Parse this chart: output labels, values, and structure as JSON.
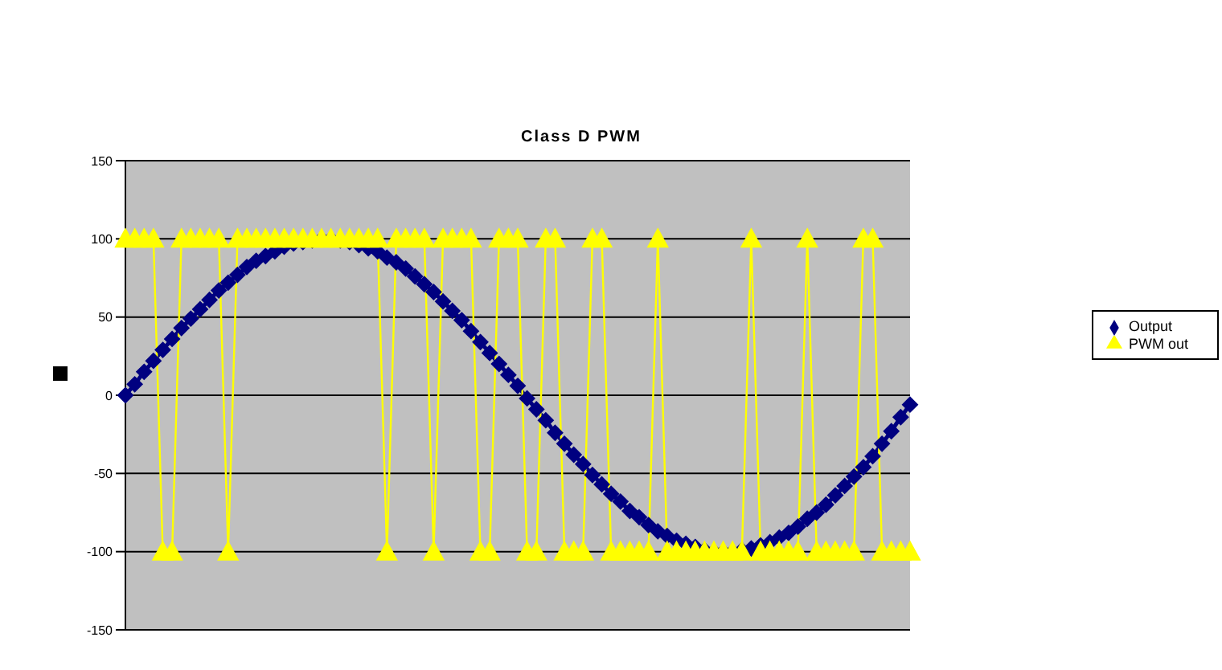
{
  "chart_data": {
    "type": "line",
    "title": "Class D PWM",
    "categories": [
      null,
      null,
      null,
      null,
      null,
      null,
      null,
      null,
      null,
      null,
      null,
      null,
      null,
      null,
      null,
      null,
      null,
      null,
      null,
      null,
      null,
      null,
      null,
      null,
      null,
      null,
      null,
      null,
      null,
      null,
      null,
      null,
      null,
      null,
      null,
      null,
      null,
      null,
      null,
      null,
      null,
      null,
      null,
      null,
      null,
      null,
      null,
      null,
      null,
      null,
      null,
      null,
      null,
      null,
      null,
      null,
      null,
      null,
      null,
      null,
      null,
      null,
      null,
      null,
      null,
      null,
      null,
      null,
      null,
      null,
      null,
      null,
      null,
      null,
      null,
      null,
      null,
      null,
      null,
      null,
      null,
      null,
      null,
      null,
      null
    ],
    "series": [
      {
        "name": "Output",
        "color": "#000080",
        "marker": "diamond",
        "values": [
          0,
          7,
          15,
          22,
          29,
          36,
          43,
          49,
          55,
          61,
          67,
          72,
          77,
          82,
          86,
          89,
          92,
          95,
          97,
          98,
          99,
          100,
          100,
          99,
          98,
          96,
          94,
          92,
          88,
          85,
          81,
          76,
          71,
          66,
          60,
          54,
          48,
          41,
          34,
          27,
          20,
          13,
          6,
          -2,
          -9,
          -16,
          -24,
          -31,
          -38,
          -44,
          -51,
          -57,
          -63,
          -68,
          -74,
          -78,
          -83,
          -87,
          -90,
          -93,
          -95,
          -97,
          -99,
          -100,
          -100,
          -100,
          -99,
          -98,
          -96,
          -94,
          -91,
          -88,
          -84,
          -79,
          -75,
          -70,
          -64,
          -58,
          -52,
          -46,
          -39,
          -31,
          -23,
          -14,
          -6
        ]
      },
      {
        "name": "PWM out",
        "color": "#ffff00",
        "marker": "triangle",
        "values": [
          100,
          100,
          100,
          100,
          -100,
          -100,
          100,
          100,
          100,
          100,
          100,
          -100,
          100,
          100,
          100,
          100,
          100,
          100,
          100,
          100,
          100,
          100,
          100,
          100,
          100,
          100,
          100,
          100,
          -100,
          100,
          100,
          100,
          100,
          -100,
          100,
          100,
          100,
          100,
          -100,
          -100,
          100,
          100,
          100,
          -100,
          -100,
          100,
          100,
          -100,
          -100,
          -100,
          100,
          100,
          -100,
          -100,
          -100,
          -100,
          -100,
          100,
          -100,
          -100,
          -100,
          -100,
          -100,
          -100,
          -100,
          -100,
          -100,
          100,
          -100,
          -100,
          -100,
          -100,
          -100,
          100,
          -100,
          -100,
          -100,
          -100,
          -100,
          100,
          100,
          -100,
          -100,
          -100,
          -100
        ]
      }
    ],
    "ylim": [
      -150,
      150
    ],
    "yticks": [
      -150,
      -100,
      -50,
      0,
      50,
      100,
      150
    ],
    "grid": "y",
    "legend": "right",
    "tick_labels": "y"
  }
}
